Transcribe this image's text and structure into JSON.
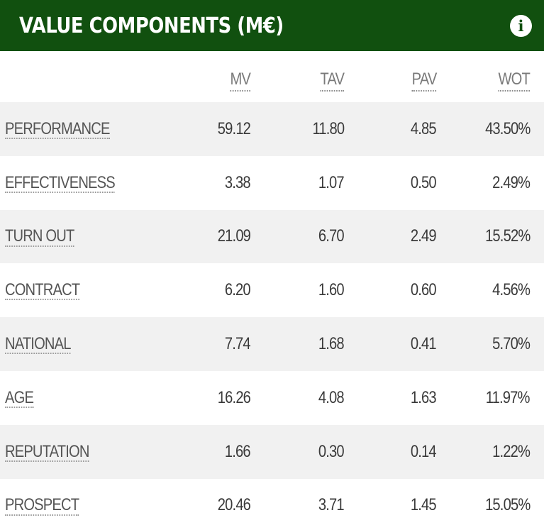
{
  "panel": {
    "title": "VALUE COMPONENTS (M€)",
    "info_icon": "info-icon"
  },
  "columns": [
    "MV",
    "TAV",
    "PAV",
    "WOT"
  ],
  "rows": [
    {
      "label": "PERFORMANCE",
      "mv": "59.12",
      "tav": "11.80",
      "pav": "4.85",
      "wot": "43.50%"
    },
    {
      "label": "EFFECTIVENESS",
      "mv": "3.38",
      "tav": "1.07",
      "pav": "0.50",
      "wot": "2.49%"
    },
    {
      "label": "TURN OUT",
      "mv": "21.09",
      "tav": "6.70",
      "pav": "2.49",
      "wot": "15.52%"
    },
    {
      "label": "CONTRACT",
      "mv": "6.20",
      "tav": "1.60",
      "pav": "0.60",
      "wot": "4.56%"
    },
    {
      "label": "NATIONAL",
      "mv": "7.74",
      "tav": "1.68",
      "pav": "0.41",
      "wot": "5.70%"
    },
    {
      "label": "AGE",
      "mv": "16.26",
      "tav": "4.08",
      "pav": "1.63",
      "wot": "11.97%"
    },
    {
      "label": "REPUTATION",
      "mv": "1.66",
      "tav": "0.30",
      "pav": "0.14",
      "wot": "1.22%"
    },
    {
      "label": "PROSPECT",
      "mv": "20.46",
      "tav": "3.71",
      "pav": "1.45",
      "wot": "15.05%"
    }
  ],
  "colors": {
    "header_bg": "#11500f",
    "header_text": "#ffffff",
    "stripe": "#f1f1f1"
  }
}
